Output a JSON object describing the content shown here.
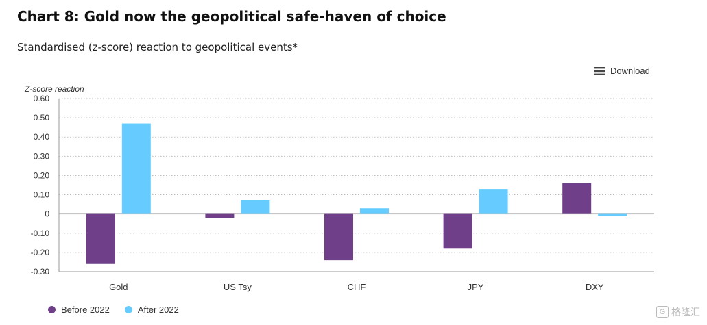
{
  "header": {
    "title": "Chart 8: Gold now the geopolitical safe-haven of choice",
    "subtitle": "Standardised (z-score) reaction to geopolitical events*"
  },
  "toolbar": {
    "download_label": "Download",
    "download_icon": "menu-icon"
  },
  "watermark": {
    "icon_letter": "G",
    "text": "格隆汇"
  },
  "colors": {
    "before": "#6f3f8a",
    "after": "#66ccff",
    "grid": "#bfbfbf",
    "axis": "#9a9a9a"
  },
  "chart_data": {
    "type": "bar",
    "ylabel": "Z-score reaction",
    "xlabel": "",
    "title": "",
    "categories": [
      "Gold",
      "US Tsy",
      "CHF",
      "JPY",
      "DXY"
    ],
    "series": [
      {
        "name": "Before 2022",
        "values": [
          -0.26,
          -0.02,
          -0.24,
          -0.18,
          0.16
        ]
      },
      {
        "name": "After 2022",
        "values": [
          0.47,
          0.07,
          0.03,
          0.13,
          -0.01
        ]
      }
    ],
    "ylim": [
      -0.3,
      0.6
    ],
    "yticks": [
      0.6,
      0.5,
      0.4,
      0.3,
      0.2,
      0.1,
      0,
      -0.1,
      -0.2,
      -0.3
    ],
    "ytick_labels": [
      "0.60",
      "0.50",
      "0.40",
      "0.30",
      "0.20",
      "0.10",
      "0",
      "-0.10",
      "-0.20",
      "-0.30"
    ],
    "grid": true,
    "legend_position": "bottom-left"
  }
}
